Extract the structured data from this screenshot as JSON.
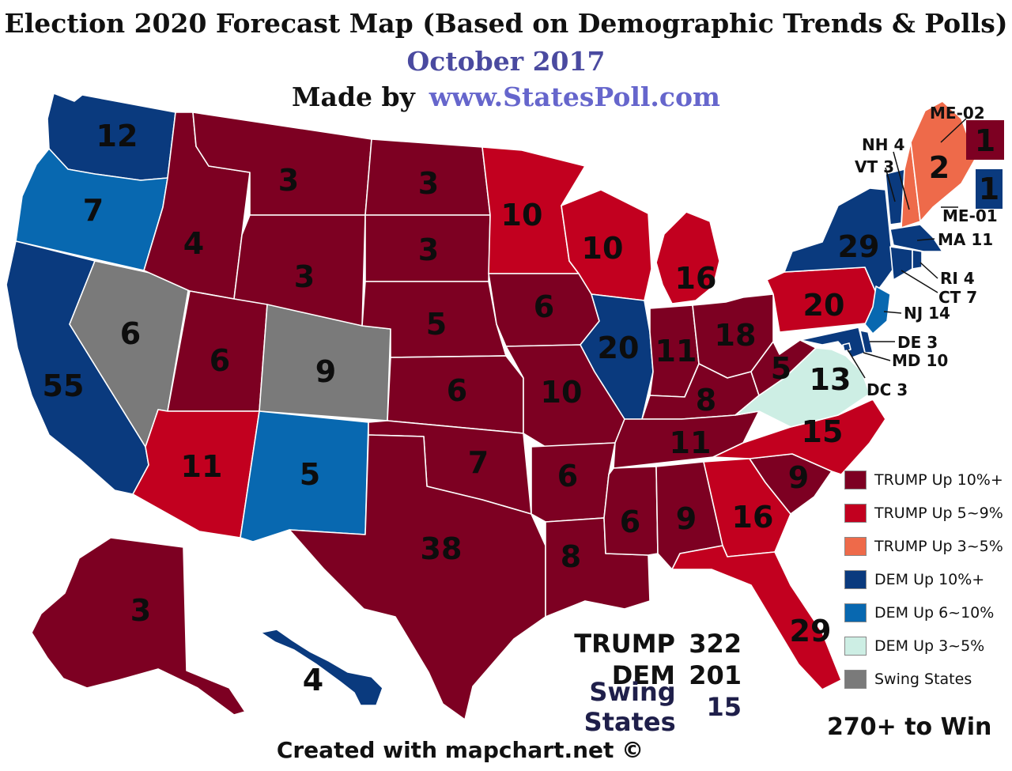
{
  "header": {
    "title": "Election 2020 Forecast Map (Based on Demographic Trends & Polls)",
    "date": "October 2017",
    "made_by_prefix": "Made by",
    "site": "www.StatesPoll.com"
  },
  "colors": {
    "trump_10": "#7d0022",
    "trump_5_9": "#c2001f",
    "trump_3_5": "#ee6a4a",
    "dem_10": "#0a3a7e",
    "dem_6_10": "#0868b0",
    "dem_3_5": "#cdeee4",
    "swing": "#7a7a7a"
  },
  "states": [
    {
      "id": "WA",
      "ev": "12",
      "cat": "dem_10"
    },
    {
      "id": "OR",
      "ev": "7",
      "cat": "dem_6_10"
    },
    {
      "id": "CA",
      "ev": "55",
      "cat": "dem_10"
    },
    {
      "id": "NV",
      "ev": "6",
      "cat": "swing"
    },
    {
      "id": "ID",
      "ev": "4",
      "cat": "trump_10"
    },
    {
      "id": "MT",
      "ev": "3",
      "cat": "trump_10"
    },
    {
      "id": "WY",
      "ev": "3",
      "cat": "trump_10"
    },
    {
      "id": "UT",
      "ev": "6",
      "cat": "trump_10"
    },
    {
      "id": "CO",
      "ev": "9",
      "cat": "swing"
    },
    {
      "id": "AZ",
      "ev": "11",
      "cat": "trump_5_9"
    },
    {
      "id": "NM",
      "ev": "5",
      "cat": "dem_6_10"
    },
    {
      "id": "ND",
      "ev": "3",
      "cat": "trump_10"
    },
    {
      "id": "SD",
      "ev": "3",
      "cat": "trump_10"
    },
    {
      "id": "NE",
      "ev": "5",
      "cat": "trump_10"
    },
    {
      "id": "KS",
      "ev": "6",
      "cat": "trump_10"
    },
    {
      "id": "OK",
      "ev": "7",
      "cat": "trump_10"
    },
    {
      "id": "TX",
      "ev": "38",
      "cat": "trump_10"
    },
    {
      "id": "MN",
      "ev": "10",
      "cat": "trump_5_9"
    },
    {
      "id": "IA",
      "ev": "6",
      "cat": "trump_10"
    },
    {
      "id": "MO",
      "ev": "10",
      "cat": "trump_10"
    },
    {
      "id": "AR",
      "ev": "6",
      "cat": "trump_10"
    },
    {
      "id": "LA",
      "ev": "8",
      "cat": "trump_10"
    },
    {
      "id": "WI",
      "ev": "10",
      "cat": "trump_5_9"
    },
    {
      "id": "IL",
      "ev": "20",
      "cat": "dem_10"
    },
    {
      "id": "MI",
      "ev": "16",
      "cat": "trump_5_9"
    },
    {
      "id": "IN",
      "ev": "11",
      "cat": "trump_10"
    },
    {
      "id": "OH",
      "ev": "18",
      "cat": "trump_10"
    },
    {
      "id": "KY",
      "ev": "8",
      "cat": "trump_10"
    },
    {
      "id": "TN",
      "ev": "11",
      "cat": "trump_10"
    },
    {
      "id": "MS",
      "ev": "6",
      "cat": "trump_10"
    },
    {
      "id": "AL",
      "ev": "9",
      "cat": "trump_10"
    },
    {
      "id": "GA",
      "ev": "16",
      "cat": "trump_5_9"
    },
    {
      "id": "FL",
      "ev": "29",
      "cat": "trump_5_9"
    },
    {
      "id": "SC",
      "ev": "9",
      "cat": "trump_10"
    },
    {
      "id": "NC",
      "ev": "15",
      "cat": "trump_5_9"
    },
    {
      "id": "VA",
      "ev": "13",
      "cat": "dem_3_5"
    },
    {
      "id": "WV",
      "ev": "5",
      "cat": "trump_10"
    },
    {
      "id": "PA",
      "ev": "20",
      "cat": "trump_5_9"
    },
    {
      "id": "NY",
      "ev": "29",
      "cat": "dem_10"
    },
    {
      "id": "VT",
      "ev": "",
      "cat": "dem_10"
    },
    {
      "id": "NH",
      "ev": "",
      "cat": "trump_3_5"
    },
    {
      "id": "ME",
      "ev": "2",
      "cat": "trump_3_5"
    },
    {
      "id": "MA",
      "ev": "",
      "cat": "dem_10"
    },
    {
      "id": "CT",
      "ev": "",
      "cat": "dem_10"
    },
    {
      "id": "RI",
      "ev": "",
      "cat": "dem_10"
    },
    {
      "id": "NJ",
      "ev": "",
      "cat": "dem_6_10"
    },
    {
      "id": "DE",
      "ev": "",
      "cat": "dem_10"
    },
    {
      "id": "MD",
      "ev": "",
      "cat": "dem_10"
    },
    {
      "id": "DC",
      "ev": "",
      "cat": "dem_10"
    },
    {
      "id": "AK",
      "ev": "3",
      "cat": "trump_10"
    },
    {
      "id": "HI",
      "ev": "4",
      "cat": "dem_10"
    }
  ],
  "northeast_labels": {
    "me02": "ME-02",
    "nh": "NH 4",
    "vt": "VT 3",
    "me01": "ME-01",
    "ma": "MA 11",
    "ri": "RI 4",
    "ct": "CT 7",
    "nj": "NJ 14",
    "de": "DE 3",
    "md": "MD 10",
    "dc": "DC 3"
  },
  "district_boxes": {
    "me02_ev": "1",
    "me01_ev": "1"
  },
  "legend": [
    {
      "label": "TRUMP Up 10%+",
      "color": "#7d0022"
    },
    {
      "label": "TRUMP Up 5~9%",
      "color": "#c2001f"
    },
    {
      "label": "TRUMP Up 3~5%",
      "color": "#ee6a4a"
    },
    {
      "label": "DEM Up 10%+",
      "color": "#0a3a7e"
    },
    {
      "label": "DEM Up 6~10%",
      "color": "#0868b0"
    },
    {
      "label": "DEM Up 3~5%",
      "color": "#cdeee4"
    },
    {
      "label": "Swing States",
      "color": "#7a7a7a"
    }
  ],
  "totals": [
    {
      "label": "TRUMP",
      "value": "322",
      "color": "#111111"
    },
    {
      "label": "DEM",
      "value": "201",
      "color": "#111111"
    },
    {
      "label": "Swing States",
      "value": "15",
      "color": "#1f1f4a"
    }
  ],
  "win_text": "270+ to Win",
  "credit": "Created with mapchart.net ©"
}
